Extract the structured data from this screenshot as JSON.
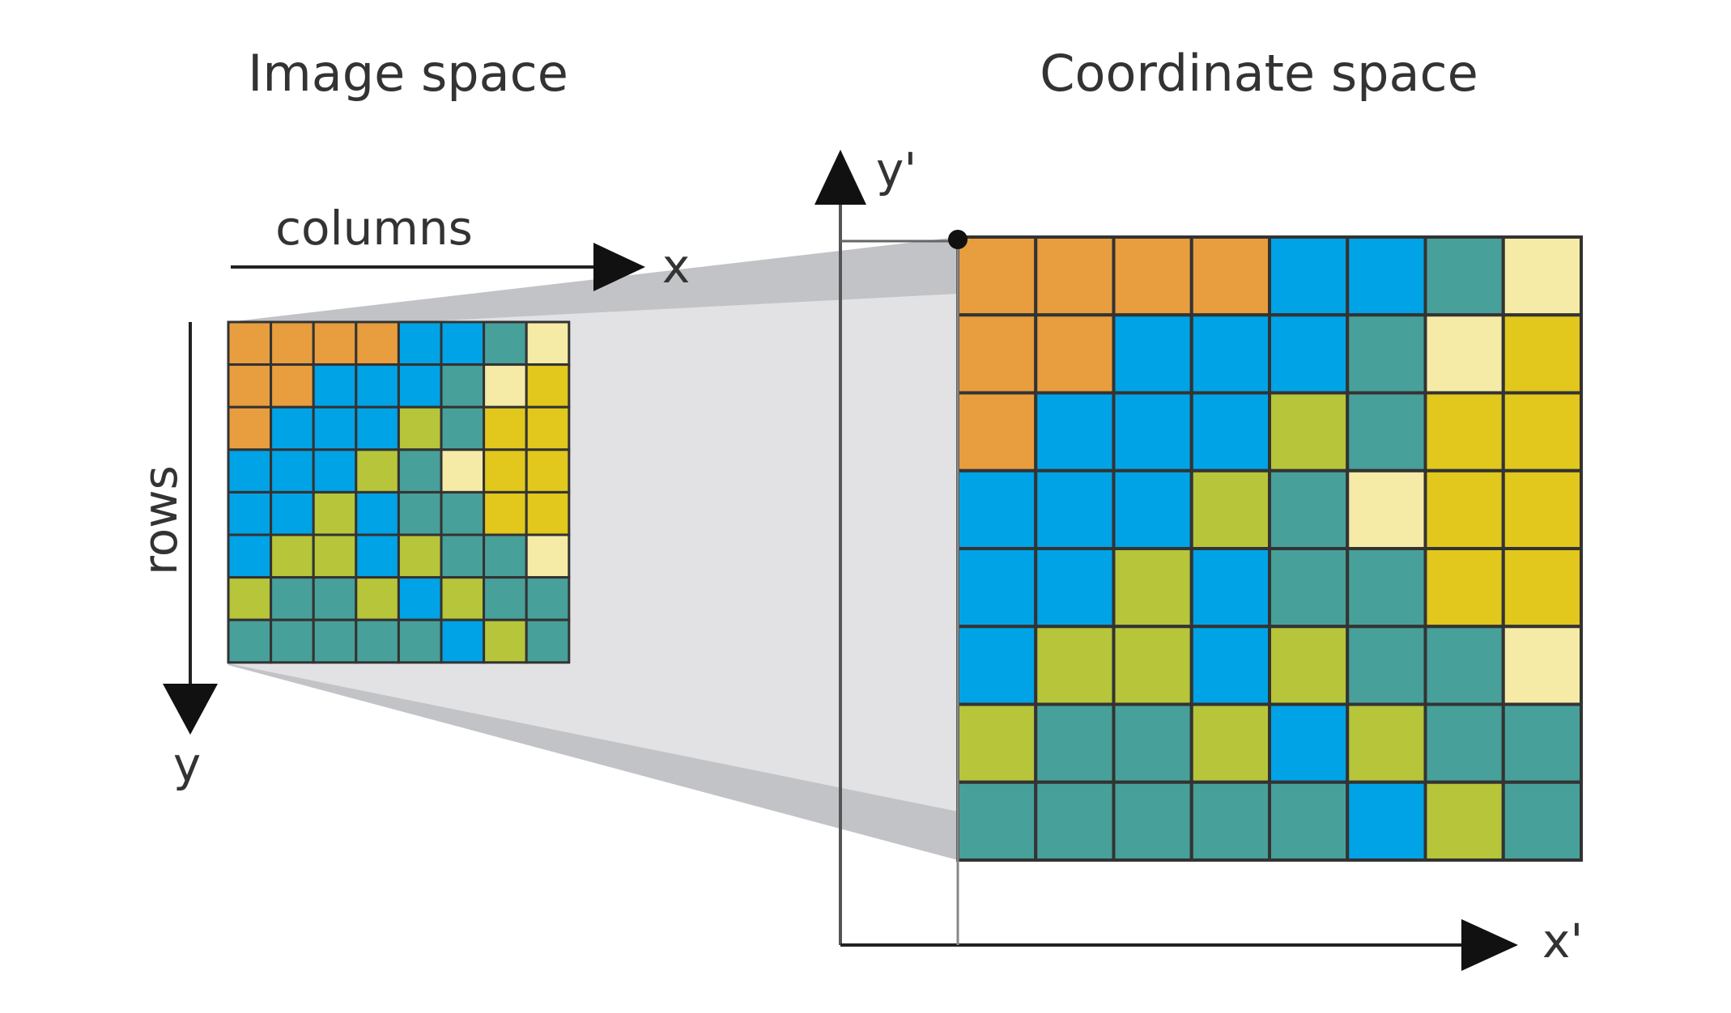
{
  "titles": {
    "image_space": "Image space",
    "coordinate_space": "Coordinate space"
  },
  "labels": {
    "columns": "columns",
    "rows": "rows",
    "x": "x",
    "y": "y",
    "x_prime": "x'",
    "y_prime": "y'"
  },
  "colors": {
    "O": "#E89E3E",
    "B": "#00A3E5",
    "T": "#48A09A",
    "L": "#B6C53A",
    "P": "#F6EBA6",
    "Y": "#E2C71D",
    "grid_line": "#333333",
    "funnel_light": "#E2E2E4",
    "funnel_dark": "#C2C3C7",
    "axis": "#222222"
  },
  "grid": [
    [
      "O",
      "O",
      "O",
      "O",
      "B",
      "B",
      "T",
      "P"
    ],
    [
      "O",
      "O",
      "B",
      "B",
      "B",
      "T",
      "P",
      "Y"
    ],
    [
      "O",
      "B",
      "B",
      "B",
      "L",
      "T",
      "Y",
      "Y"
    ],
    [
      "B",
      "B",
      "B",
      "L",
      "T",
      "P",
      "Y",
      "Y"
    ],
    [
      "B",
      "B",
      "L",
      "B",
      "T",
      "T",
      "Y",
      "Y"
    ],
    [
      "B",
      "L",
      "L",
      "B",
      "L",
      "T",
      "T",
      "P"
    ],
    [
      "L",
      "T",
      "T",
      "L",
      "B",
      "L",
      "T",
      "T"
    ],
    [
      "T",
      "T",
      "T",
      "T",
      "T",
      "B",
      "L",
      "T"
    ]
  ]
}
